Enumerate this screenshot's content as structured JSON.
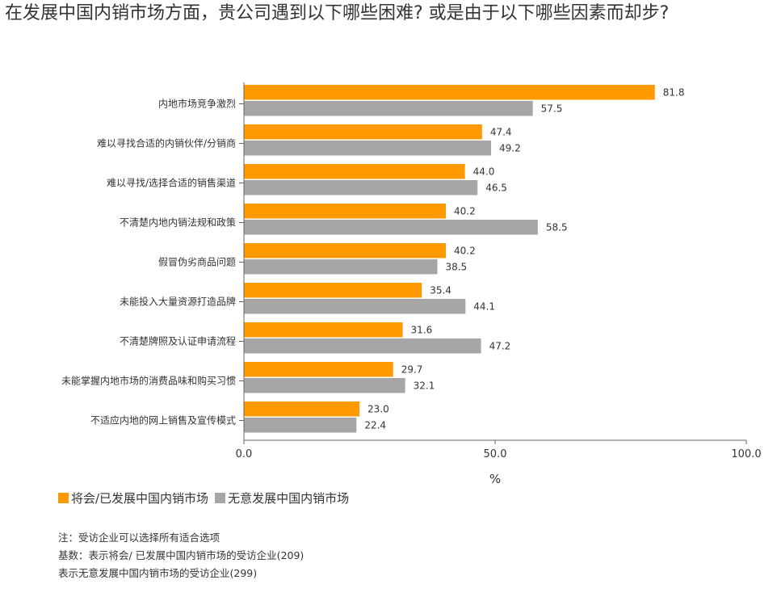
{
  "title": "在发展中国内销市场方面，贵公司遇到以下哪些困难? 或是由于以下哪些因素而却步?",
  "chart_data": {
    "type": "bar",
    "orientation": "horizontal",
    "categories": [
      "内地市场竞争激烈",
      "难以寻找合适的内销伙伴/分销商",
      "难以寻找/选择合适的销售渠道",
      "不清楚内地内销法规和政策",
      "假冒伪劣商品问题",
      "未能投入大量资源打造品牌",
      "不清楚牌照及认证申请流程",
      "未能掌握内地市场的消费品味和购买习惯",
      "不适应内地的网上销售及宣传模式"
    ],
    "series": [
      {
        "name": "将会/已发展中国内销市场",
        "color": "#FF9900",
        "values": [
          81.8,
          47.4,
          44.0,
          40.2,
          40.2,
          35.4,
          31.6,
          29.7,
          23.0
        ]
      },
      {
        "name": "无意发展中国内销市场",
        "color": "#A6A6A6",
        "values": [
          57.5,
          49.2,
          46.5,
          58.5,
          38.5,
          44.1,
          47.2,
          32.1,
          22.4
        ]
      }
    ],
    "xlim": [
      0,
      100
    ],
    "xticks": [
      "0.0",
      "50.0",
      "100.0"
    ],
    "xlabel": "%",
    "ylabel": "",
    "legend_position": "bottom-left",
    "grid": false
  },
  "notes": [
    "注：受访企业可以选择所有适合选项",
    "基数：表示将会/ 已发展中国内销市场的受访企业(209)",
    "表示无意发展中国内销市场的受访企业(299)"
  ]
}
